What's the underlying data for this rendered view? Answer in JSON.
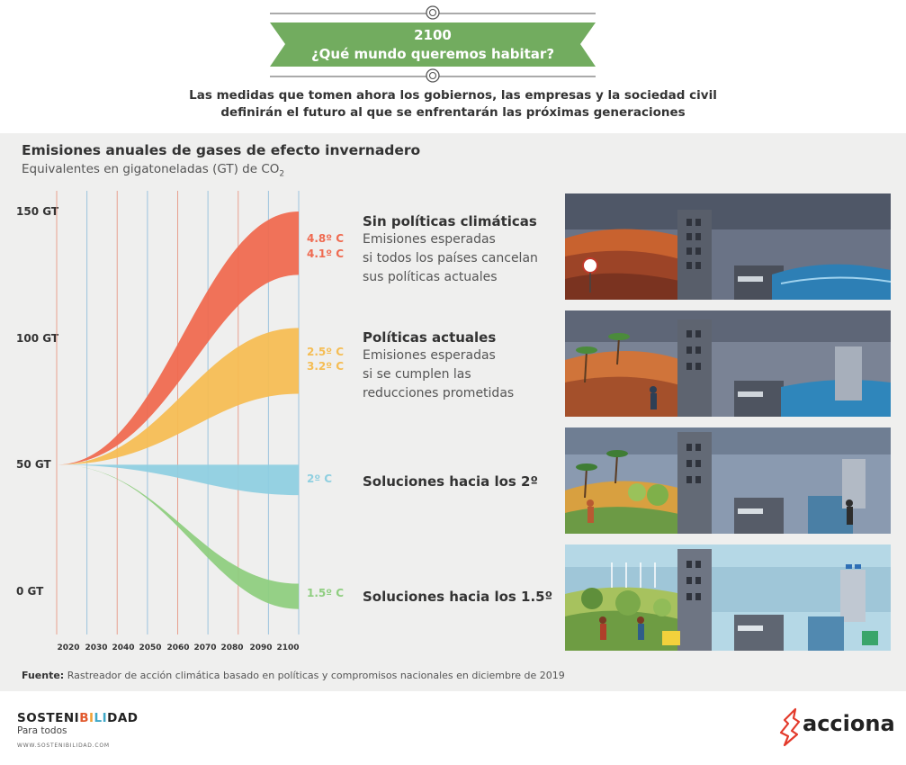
{
  "header": {
    "year": "2100",
    "question": "¿Qué mundo queremos habitar?",
    "subtitle_line1": "Las medidas que tomen ahora los gobiernos, las empresas y la sociedad civil",
    "subtitle_line2": "definirán el futuro al que se enfrentarán las próximas generaciones"
  },
  "chart_title": "Emisiones anuales de gases de efecto invernadero",
  "chart_subtitle": "Equivalentes en gigatoneladas (GT) de CO",
  "chart_subtitle_sub": "2",
  "scenarios": [
    {
      "title": "Sin políticas climáticas",
      "desc1": "Emisiones esperadas",
      "desc2": "si todos los países cancelan",
      "desc3": "sus políticas actuales"
    },
    {
      "title": "Políticas actuales",
      "desc1": "Emisiones esperadas",
      "desc2": "si se cumplen las",
      "desc3": "reducciones prometidas"
    },
    {
      "title": "Soluciones hacia los 2º"
    },
    {
      "title": "Soluciones hacia los 1.5º"
    }
  ],
  "source_label": "Fuente:",
  "source_text": " Rastreador de acción climática basado en políticas y compromisos nacionales en diciembre de 2019",
  "footer": {
    "brand_a": "SOSTENI",
    "brand_b1": "B",
    "brand_b2": "I",
    "brand_b3": "LI",
    "brand_c": "DAD",
    "tagline": "Para todos",
    "url": "WWW.SOSTENIBILIDAD.COM",
    "logo": "acciona"
  },
  "colors": {
    "banner_green": "#72ac5f",
    "no_policy": "#ef6a50",
    "current": "#f5bd54",
    "two_deg": "#8fcfe0",
    "one_five": "#8fce80"
  },
  "chart_data": {
    "type": "area",
    "x_ticks": [
      "2020",
      "2030",
      "2040",
      "2050",
      "2060",
      "2070",
      "2080",
      "2090",
      "2100"
    ],
    "y_ticks": [
      "0 GT",
      "50 GT",
      "100 GT",
      "150 GT"
    ],
    "ylim": [
      -10,
      160
    ],
    "xlim": [
      2020,
      2100
    ],
    "start": {
      "x": 2020,
      "y": 50
    },
    "series": [
      {
        "name": "Sin políticas climáticas",
        "upper_2100": 150,
        "lower_2100": 125,
        "labels": [
          "4.8º C",
          "4.1º C"
        ],
        "color": "#ef6a50"
      },
      {
        "name": "Políticas actuales",
        "upper_2100": 104,
        "lower_2100": 78,
        "labels": [
          "2.5º C",
          "3.2º C"
        ],
        "color": "#f5bd54"
      },
      {
        "name": "Soluciones hacia los 2º",
        "upper_2100": 50,
        "lower_2100": 38,
        "labels": [
          "2º C"
        ],
        "color": "#8fcfe0"
      },
      {
        "name": "Soluciones hacia los 1.5º",
        "upper_2100": 3,
        "lower_2100": -7,
        "labels": [
          "1.5º C"
        ],
        "color": "#8fce80"
      }
    ]
  }
}
